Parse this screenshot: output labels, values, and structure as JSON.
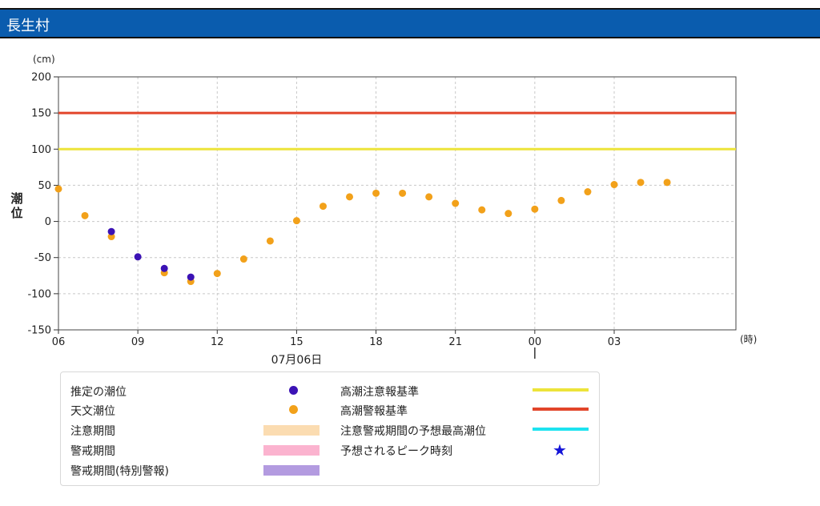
{
  "page": {
    "title": "長生村"
  },
  "chart_data": {
    "type": "scatter",
    "ylabel": "潮位",
    "y_unit": "(cm)",
    "x_unit": "(時)",
    "ylim": [
      -150,
      200
    ],
    "yticks": [
      -150,
      -100,
      -50,
      0,
      50,
      100,
      150,
      200
    ],
    "xticks": [
      "09",
      "12",
      "15",
      "18",
      "21",
      "00",
      "03",
      "06"
    ],
    "date_label": "07月06日",
    "grid": true,
    "x_start_hour": 6,
    "x_end_hour": 31.6,
    "reference_lines": [
      {
        "name": "高潮注意報基準",
        "value": 100,
        "color": "#ede43a"
      },
      {
        "name": "高潮警報基準",
        "value": 150,
        "color": "#e2452a"
      }
    ],
    "series": [
      {
        "name": "推定の潮位",
        "color": "#3b12b5",
        "points": [
          {
            "x": "08",
            "y": -14
          },
          {
            "x": "09",
            "y": -49
          },
          {
            "x": "10",
            "y": -65
          },
          {
            "x": "11",
            "y": -77
          }
        ]
      },
      {
        "name": "天文潮位",
        "color": "#f2a11a",
        "points": [
          {
            "x": "07",
            "y": 8
          },
          {
            "x": "08",
            "y": -21
          },
          {
            "x": "10",
            "y": -71
          },
          {
            "x": "11",
            "y": -83
          },
          {
            "x": "12",
            "y": -72
          },
          {
            "x": "13",
            "y": -52
          },
          {
            "x": "14",
            "y": -27
          },
          {
            "x": "15",
            "y": 1
          },
          {
            "x": "16",
            "y": 21
          },
          {
            "x": "17",
            "y": 34
          },
          {
            "x": "18",
            "y": 39
          },
          {
            "x": "19",
            "y": 39
          },
          {
            "x": "20",
            "y": 34
          },
          {
            "x": "21",
            "y": 25
          },
          {
            "x": "22",
            "y": 16
          },
          {
            "x": "23",
            "y": 11
          },
          {
            "x": "00",
            "y": 17
          },
          {
            "x": "01",
            "y": 29
          },
          {
            "x": "02",
            "y": 41
          },
          {
            "x": "03",
            "y": 51
          },
          {
            "x": "04",
            "y": 54
          },
          {
            "x": "05",
            "y": 54
          },
          {
            "x": "06",
            "y": 45
          }
        ]
      }
    ]
  },
  "legend": {
    "items": [
      {
        "label": "推定の潮位",
        "kind": "dot",
        "color": "#3b12b5"
      },
      {
        "label": "天文潮位",
        "kind": "dot",
        "color": "#f2a11a"
      },
      {
        "label": "注意期間",
        "kind": "rect",
        "color": "#fbdcb1"
      },
      {
        "label": "警戒期間",
        "kind": "rect",
        "color": "#fbb3cf"
      },
      {
        "label": "警戒期間(特別警報)",
        "kind": "rect",
        "color": "#b39be0"
      },
      {
        "label": "高潮注意報基準",
        "kind": "line",
        "color": "#ede43a"
      },
      {
        "label": "高潮警報基準",
        "kind": "line",
        "color": "#e2452a"
      },
      {
        "label": "注意警戒期間の予想最高潮位",
        "kind": "line",
        "color": "#1de3f0"
      },
      {
        "label": "予想されるピーク時刻",
        "kind": "star",
        "color": "#1414d8",
        "symbol": "★"
      }
    ]
  }
}
